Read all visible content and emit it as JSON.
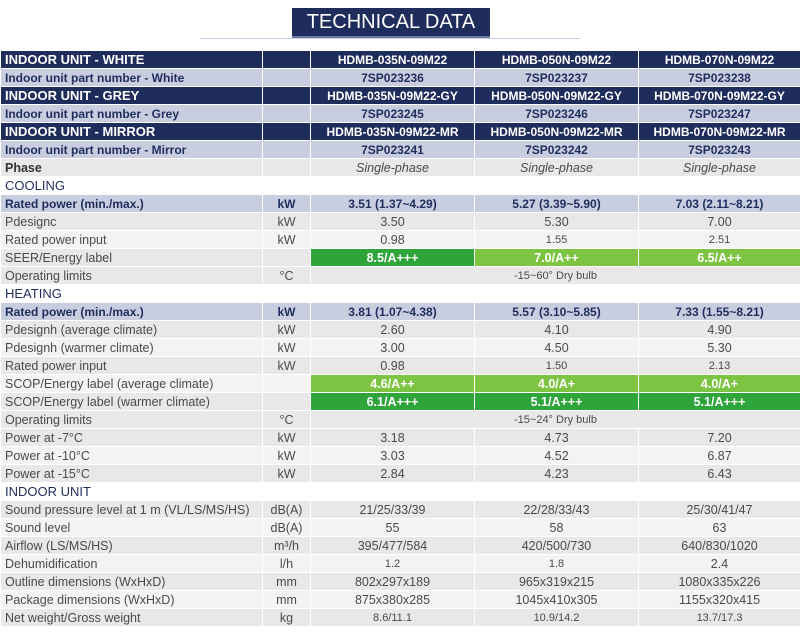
{
  "title": "TECHNICAL DATA",
  "colors": {
    "navy": "#1f2d5c",
    "lavender": "#c9cde0",
    "green_dark": "#2ea43a",
    "green_light": "#7dc442"
  },
  "rows": [
    {
      "kind": "hdr",
      "label": "INDOOR UNIT - WHITE",
      "unit": "",
      "values": [
        "HDMB-035N-09M22",
        "HDMB-050N-09M22",
        "HDMB-070N-09M22"
      ]
    },
    {
      "kind": "sub",
      "label": "Indoor unit part number - White",
      "unit": "",
      "values": [
        "7SP023236",
        "7SP023237",
        "7SP023238"
      ]
    },
    {
      "kind": "hdr",
      "label": "INDOOR UNIT - GREY",
      "unit": "",
      "values": [
        "HDMB-035N-09M22-GY",
        "HDMB-050N-09M22-GY",
        "HDMB-070N-09M22-GY"
      ]
    },
    {
      "kind": "sub",
      "label": "Indoor unit part number - Grey",
      "unit": "",
      "values": [
        "7SP023245",
        "7SP023246",
        "7SP023247"
      ]
    },
    {
      "kind": "hdr",
      "label": "INDOOR UNIT - MIRROR",
      "unit": "",
      "values": [
        "HDMB-035N-09M22-MR",
        "HDMB-050N-09M22-MR",
        "HDMB-070N-09M22-MR"
      ]
    },
    {
      "kind": "sub",
      "label": "Indoor unit part number - Mirror",
      "unit": "",
      "values": [
        "7SP023241",
        "7SP023242",
        "7SP023243"
      ]
    },
    {
      "kind": "phase",
      "label": "Phase",
      "unit": "",
      "values": [
        "Single-phase",
        "Single-phase",
        "Single-phase"
      ]
    },
    {
      "kind": "section",
      "label": "COOLING"
    },
    {
      "kind": "rated",
      "label": "Rated power (min./max.)",
      "unit": "kW",
      "values": [
        "3.51 (1.37~4.29)",
        "5.27 (3.39~5.90)",
        "7.03 (2.11~8.21)"
      ]
    },
    {
      "kind": "a",
      "label": "Pdesignc",
      "unit": "kW",
      "values": [
        "3.50",
        "5.30",
        "7.00"
      ]
    },
    {
      "kind": "b",
      "label": "Rated power input",
      "unit": "kW",
      "values": [
        "0.98",
        "1.55",
        "2.51"
      ],
      "small": [
        false,
        true,
        true
      ]
    },
    {
      "kind": "a",
      "label": "SEER/Energy label",
      "unit": "",
      "values": [
        "8.5/A+++",
        "7.0/A++",
        "6.5/A++"
      ],
      "greens": [
        "d",
        "l",
        "l"
      ]
    },
    {
      "kind": "span",
      "label": "Operating limits",
      "unit": "°C",
      "span": "-15~60° Dry bulb"
    },
    {
      "kind": "section",
      "label": "HEATING"
    },
    {
      "kind": "rated",
      "label": "Rated power (min./max.)",
      "unit": "kW",
      "values": [
        "3.81 (1.07~4.38)",
        "5.57 (3.10~5.85)",
        "7.33 (1.55~8.21)"
      ]
    },
    {
      "kind": "a",
      "label": "Pdesignh (average climate)",
      "unit": "kW",
      "values": [
        "2.60",
        "4.10",
        "4.90"
      ]
    },
    {
      "kind": "b",
      "label": "Pdesignh (warmer climate)",
      "unit": "kW",
      "values": [
        "3.00",
        "4.50",
        "5.30"
      ]
    },
    {
      "kind": "a",
      "label": "Rated power input",
      "unit": "kW",
      "values": [
        "0.98",
        "1.50",
        "2.13"
      ],
      "small": [
        false,
        true,
        true
      ]
    },
    {
      "kind": "b",
      "label": "SCOP/Energy label (average climate)",
      "unit": "",
      "values": [
        "4.6/A++",
        "4.0/A+",
        "4.0/A+"
      ],
      "greens": [
        "l",
        "l",
        "l"
      ]
    },
    {
      "kind": "a",
      "label": "SCOP/Energy label (warmer climate)",
      "unit": "",
      "values": [
        "6.1/A+++",
        "5.1/A+++",
        "5.1/A+++"
      ],
      "greens": [
        "d",
        "d",
        "d"
      ]
    },
    {
      "kind": "span",
      "label": "Operating limits",
      "unit": "°C",
      "span": "-15~24° Dry bulb"
    },
    {
      "kind": "a",
      "label": "Power at -7°C",
      "unit": "kW",
      "values": [
        "3.18",
        "4.73",
        "7.20"
      ]
    },
    {
      "kind": "b",
      "label": "Power at -10°C",
      "unit": "kW",
      "values": [
        "3.03",
        "4.52",
        "6.87"
      ]
    },
    {
      "kind": "a",
      "label": "Power at -15°C",
      "unit": "kW",
      "values": [
        "2.84",
        "4.23",
        "6.43"
      ]
    },
    {
      "kind": "section",
      "label": "INDOOR UNIT"
    },
    {
      "kind": "a",
      "label": "Sound pressure level at 1 m (VL/LS/MS/HS)",
      "unit": "dB(A)",
      "values": [
        "21/25/33/39",
        "22/28/33/43",
        "25/30/41/47"
      ]
    },
    {
      "kind": "b",
      "label": "Sound level",
      "unit": "dB(A)",
      "values": [
        "55",
        "58",
        "63"
      ]
    },
    {
      "kind": "a",
      "label": "Airflow (LS/MS/HS)",
      "unit": "m³/h",
      "values": [
        "395/477/584",
        "420/500/730",
        "640/830/1020"
      ]
    },
    {
      "kind": "b",
      "label": "Dehumidification",
      "unit": "l/h",
      "values": [
        "1.2",
        "1.8",
        "2.4"
      ],
      "small": [
        true,
        true,
        false
      ]
    },
    {
      "kind": "a",
      "label": "Outline dimensions (WxHxD)",
      "unit": "mm",
      "values": [
        "802x297x189",
        "965x319x215",
        "1080x335x226"
      ]
    },
    {
      "kind": "b",
      "label": "Package dimensions (WxHxD)",
      "unit": "mm",
      "values": [
        "875x380x285",
        "1045x410x305",
        "1155x320x415"
      ]
    },
    {
      "kind": "a",
      "label": "Net weight/Gross weight",
      "unit": "kg",
      "values": [
        "8.6/11.1",
        "10.9/14.2",
        "13.7/17.3"
      ],
      "small": [
        true,
        true,
        true
      ]
    }
  ]
}
